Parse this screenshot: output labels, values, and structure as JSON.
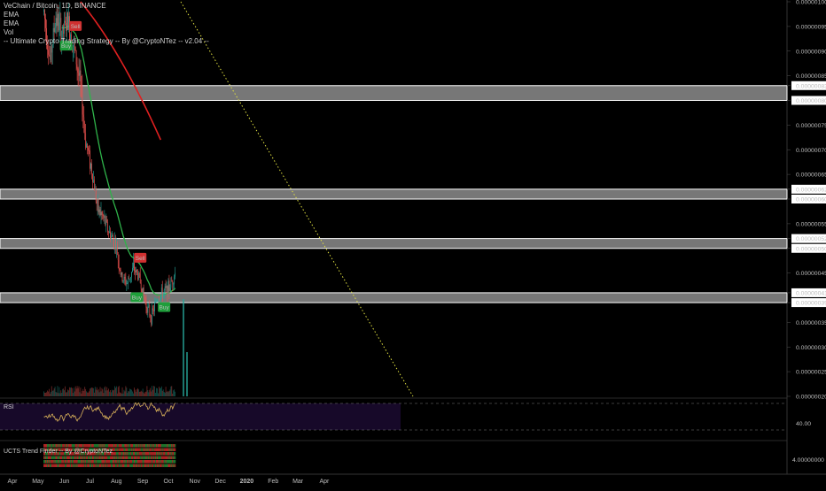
{
  "legend": {
    "symbol": "VeChain / Bitcoin, 1D, BINANCE",
    "ema1": "EMA",
    "ema2": "EMA",
    "vol": "Vol",
    "strategy": "-- Ultimate Crypto Trading Strategy -- By @CryptoNTez -- v2.04 --"
  },
  "rsi_label": "RSI",
  "ucts_label": "UCTS Trend Finder -- By @CryptoNTez",
  "colors": {
    "bg": "#000000",
    "up": "#26a69a",
    "down": "#ef5350",
    "ema_green": "#2fb34a",
    "ema_red": "#e02020",
    "trend_line": "#e0e040",
    "zone_fill": "#d8d8d8",
    "rsi_line": "#d9b25a",
    "rsi_bg": "#1a0a2e",
    "buy": "#1e9e3a",
    "sell": "#d03030"
  },
  "chart_data": {
    "type": "candlestick",
    "title": "VeChain / Bitcoin, 1D, BINANCE",
    "x_ticks": [
      "Apr",
      "May",
      "Jun",
      "Jul",
      "Aug",
      "Sep",
      "Oct",
      "Nov",
      "Dec",
      "2020",
      "Feb",
      "Mar",
      "Apr"
    ],
    "y_ticks": [
      "0.00000100",
      "0.00000095",
      "0.00000090",
      "0.00000085",
      "0.00000083",
      "0.00000080",
      "0.00000075",
      "0.00000070",
      "0.00000065",
      "0.00000062",
      "0.00000060",
      "0.00000055",
      "0.00000052",
      "0.00000050",
      "0.00000045",
      "0.00000041",
      "0.00000039",
      "0.00000035",
      "0.00000030",
      "0.00000025",
      "0.00000020"
    ],
    "ylim": [
      2e-07,
      1e-06
    ],
    "price_series": {
      "name": "VET/BTC close (approx.)",
      "dates": [
        "2019-05-08",
        "2019-05-15",
        "2019-05-22",
        "2019-05-29",
        "2019-06-05",
        "2019-06-12",
        "2019-06-19",
        "2019-06-26",
        "2019-07-03",
        "2019-07-10",
        "2019-07-17",
        "2019-07-24",
        "2019-07-31",
        "2019-08-07",
        "2019-08-14",
        "2019-08-21",
        "2019-08-28",
        "2019-09-04",
        "2019-09-11",
        "2019-09-18",
        "2019-09-25",
        "2019-10-02",
        "2019-10-09"
      ],
      "values": [
        9.8e-07,
        8.8e-07,
        9.7e-07,
        9.3e-07,
        9.6e-07,
        9.1e-07,
        8.4e-07,
        7.2e-07,
        6.6e-07,
        5.8e-07,
        5.6e-07,
        5.3e-07,
        5.1e-07,
        4.4e-07,
        4.3e-07,
        4.6e-07,
        4.4e-07,
        3.9e-07,
        3.6e-07,
        4e-07,
        4.1e-07,
        4.2e-07,
        4.5e-07
      ]
    },
    "zones": [
      {
        "top": 8.3e-07,
        "bottom": 8e-07
      },
      {
        "top": 6.2e-07,
        "bottom": 6e-07
      },
      {
        "top": 5.2e-07,
        "bottom": 5e-07
      },
      {
        "top": 4.1e-07,
        "bottom": 3.9e-07
      }
    ],
    "signals": [
      {
        "label": "Buy",
        "date": "2019-06-03",
        "price": 9.1e-07
      },
      {
        "label": "Sell",
        "date": "2019-06-14",
        "price": 9.5e-07
      },
      {
        "label": "Sell",
        "date": "2019-08-29",
        "price": 4.8e-07
      },
      {
        "label": "Buy",
        "date": "2019-08-25",
        "price": 4e-07
      },
      {
        "label": "Buy",
        "date": "2019-09-26",
        "price": 3.8e-07
      }
    ],
    "rsi": {
      "name": "RSI",
      "level_label": "40.00",
      "ylim": [
        20,
        80
      ]
    },
    "ucts": {
      "name": "UCTS Trend Finder -- By @CryptoNTez",
      "level_label": "4.00000000"
    }
  }
}
